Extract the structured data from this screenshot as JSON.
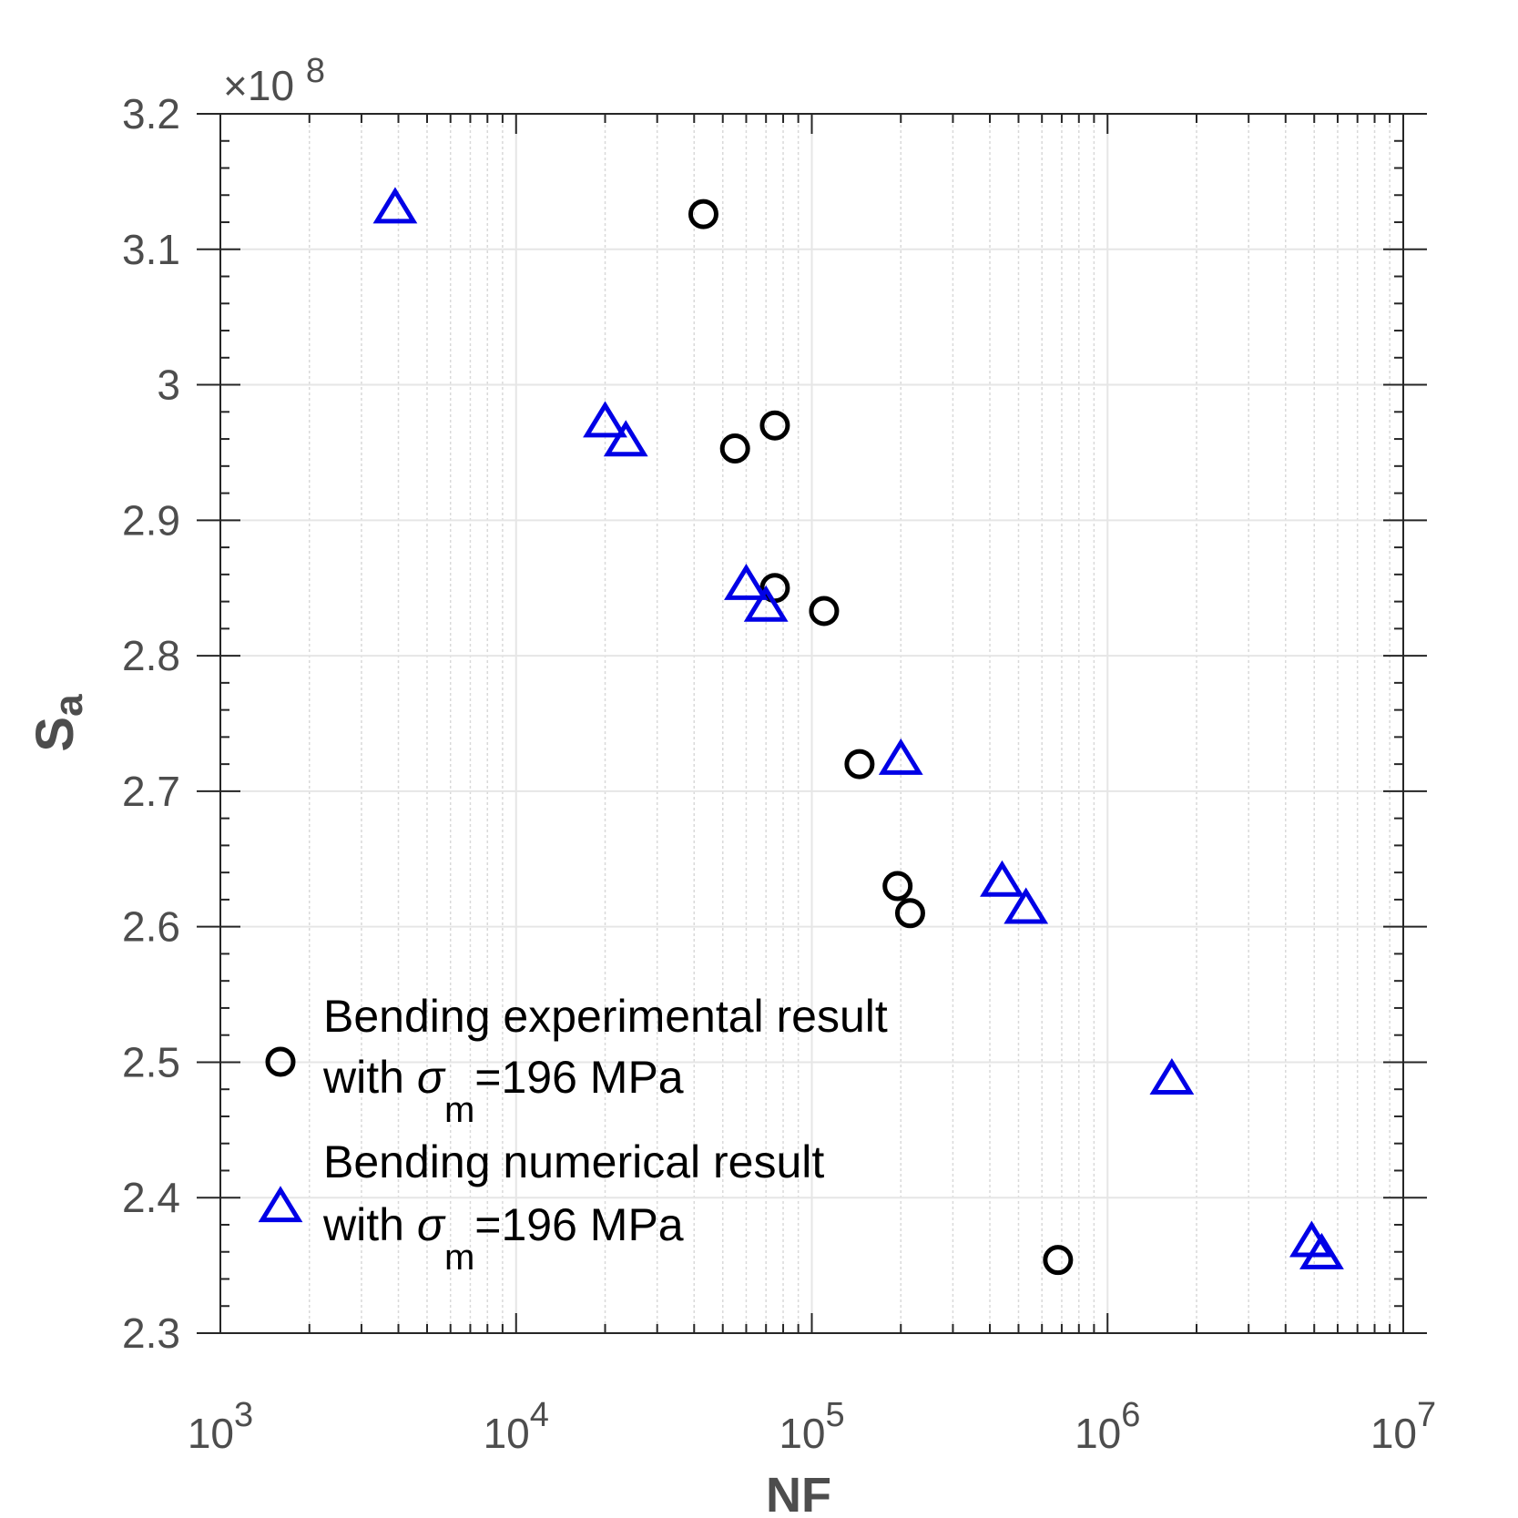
{
  "chart_data": {
    "type": "scatter",
    "xlabel": "NF",
    "ylabel_main": "S",
    "ylabel_sub": "a",
    "x_scale": "log",
    "xlim": [
      1000,
      10000000
    ],
    "ylim": [
      230000000,
      320000000
    ],
    "y_exponent_label": "×10",
    "y_exponent_power": "8",
    "x_ticks": [
      {
        "base": "10",
        "exp": "3",
        "value": 1000
      },
      {
        "base": "10",
        "exp": "4",
        "value": 10000
      },
      {
        "base": "10",
        "exp": "5",
        "value": 100000
      },
      {
        "base": "10",
        "exp": "6",
        "value": 1000000
      },
      {
        "base": "10",
        "exp": "7",
        "value": 10000000
      }
    ],
    "y_ticks": [
      {
        "label": "2.3",
        "value": 230000000
      },
      {
        "label": "2.4",
        "value": 240000000
      },
      {
        "label": "2.5",
        "value": 250000000
      },
      {
        "label": "2.6",
        "value": 260000000
      },
      {
        "label": "2.7",
        "value": 270000000
      },
      {
        "label": "2.8",
        "value": 280000000
      },
      {
        "label": "2.9",
        "value": 290000000
      },
      {
        "label": "3",
        "value": 300000000
      },
      {
        "label": "3.1",
        "value": 310000000
      },
      {
        "label": "3.2",
        "value": 320000000
      }
    ],
    "grid": true,
    "legend_position": "bottom-left",
    "series": [
      {
        "name_line1": "Bending experimental result",
        "name_line2_prefix": "with ",
        "name_line2_symbol": "σ",
        "name_line2_sub": "m",
        "name_line2_suffix": "=196 MPa",
        "marker": "circle",
        "color": "#000000",
        "points": [
          {
            "x": 43000,
            "y": 312600000
          },
          {
            "x": 55000,
            "y": 295300000
          },
          {
            "x": 75000,
            "y": 297000000
          },
          {
            "x": 75000,
            "y": 285000000
          },
          {
            "x": 110000,
            "y": 283300000
          },
          {
            "x": 145000,
            "y": 272000000
          },
          {
            "x": 195000,
            "y": 263000000
          },
          {
            "x": 215000,
            "y": 261000000
          },
          {
            "x": 680000,
            "y": 235400000
          }
        ]
      },
      {
        "name_line1": "Bending numerical result",
        "name_line2_prefix": "with ",
        "name_line2_symbol": "σ",
        "name_line2_sub": "m",
        "name_line2_suffix": "=196 MPa",
        "marker": "triangle",
        "color": "#0000e6",
        "points": [
          {
            "x": 3900,
            "y": 313000000
          },
          {
            "x": 20000,
            "y": 297200000
          },
          {
            "x": 23500,
            "y": 295800000
          },
          {
            "x": 60000,
            "y": 285200000
          },
          {
            "x": 70000,
            "y": 283600000
          },
          {
            "x": 200000,
            "y": 272300000
          },
          {
            "x": 440000,
            "y": 263300000
          },
          {
            "x": 530000,
            "y": 261300000
          },
          {
            "x": 1650000,
            "y": 248700000
          },
          {
            "x": 4900000,
            "y": 236700000
          },
          {
            "x": 5300000,
            "y": 235800000
          }
        ]
      }
    ]
  }
}
